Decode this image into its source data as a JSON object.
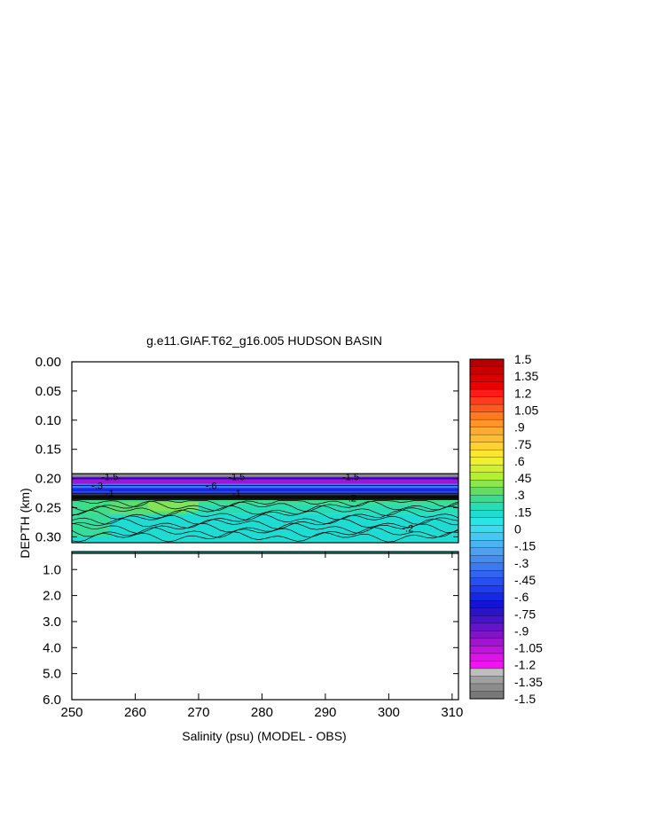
{
  "chart_data": {
    "type": "heatmap",
    "title": "g.e11.GIAF.T62_g16.005 HUDSON BASIN",
    "xlabel": "Salinity (psu) (MODEL - OBS)",
    "ylabel": "DEPTH (km)",
    "xlim": [
      250,
      311
    ],
    "x_ticks": [
      "250",
      "260",
      "270",
      "280",
      "290",
      "300",
      "310"
    ],
    "upper_panel": {
      "ylim": [
        0.0,
        0.31
      ],
      "y_ticks": [
        "0.00",
        "0.05",
        "0.10",
        "0.15",
        "0.20",
        "0.25",
        "0.30"
      ]
    },
    "lower_panel": {
      "ylim": [
        0.31,
        6.0
      ],
      "y_ticks": [
        "1.0",
        "2.0",
        "3.0",
        "4.0",
        "5.0",
        "6.0"
      ]
    },
    "colorbar": {
      "labels": [
        "1.5",
        "1.35",
        "1.2",
        "1.05",
        ".9",
        ".75",
        ".6",
        ".45",
        ".3",
        ".15",
        "0",
        "-.15",
        "-.3",
        "-.45",
        "-.6",
        "-.75",
        "-.9",
        "-1.05",
        "-1.2",
        "-1.35",
        "-1.5"
      ],
      "colors": [
        "#b40000",
        "#c80000",
        "#dc0000",
        "#ee0000",
        "#ff1a1a",
        "#ff3c1e",
        "#ff5a1e",
        "#ff7a1e",
        "#ff9428",
        "#ffaa32",
        "#ffbe32",
        "#ffd232",
        "#ffe632",
        "#f0f032",
        "#d2f032",
        "#b4f032",
        "#8ce650",
        "#64dc64",
        "#3cdc8c",
        "#28dcb4",
        "#1edcd2",
        "#28e6e6",
        "#3cdcf0",
        "#46c8f0",
        "#4bb4f0",
        "#50a0f0",
        "#468cf0",
        "#3c78f0",
        "#3264f0",
        "#2850f0",
        "#1e3cf0",
        "#1428e6",
        "#1414d2",
        "#2a14c8",
        "#4614c8",
        "#6414c8",
        "#8214c8",
        "#a014d2",
        "#be14dc",
        "#dc14e6",
        "#f014f0",
        "#bebebe",
        "#a0a0a0",
        "#8c8c8c",
        "#787878"
      ]
    },
    "contour_labels": [
      "-1.5",
      "-1.5",
      "-1.5",
      "-1",
      "-1",
      "-.3",
      "-.2",
      "-.2",
      "-.6"
    ]
  }
}
